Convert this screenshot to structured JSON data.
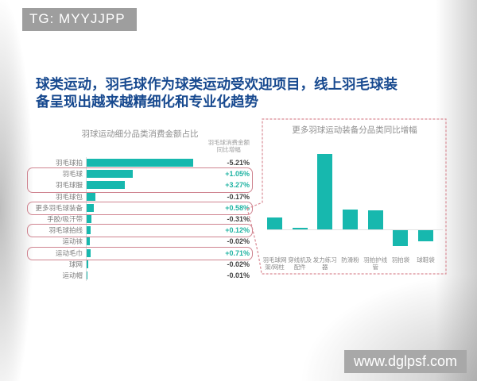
{
  "banner": {
    "text": "TG: MYYJJPP"
  },
  "watermark": {
    "text": "www.dglpsf.com"
  },
  "title": {
    "line1": "球类运动，羽毛球作为球类运动受欢迎项目，线上羽毛球装",
    "line2": "备呈现出越来越精细化和专业化趋势"
  },
  "colors": {
    "bar_teal": "#17b8ae",
    "positive_value": "#1fb3a2",
    "negative_value": "#3f3f3f",
    "highlight_border": "#cf8490",
    "title_blue": "#17498f",
    "gray_text": "#8f8f8f",
    "banner_gray": "#9e9e9e"
  },
  "chart_data": [
    {
      "type": "bar",
      "orientation": "horizontal",
      "title": "羽球运动细分品类消费金额占比",
      "value_column_header_line1": "羽毛球消费金额",
      "value_column_header_line2": "同比增幅",
      "categories": [
        "羽毛球拍",
        "羽毛球",
        "羽毛球服",
        "羽毛球包",
        "更多羽毛球装备",
        "手胶/吸汗带",
        "羽毛球拍线",
        "运动袜",
        "运动毛巾",
        "球网",
        "运动帽"
      ],
      "share_rel_of_max": [
        100,
        43,
        36,
        8,
        6.5,
        4.5,
        3.7,
        3,
        3.5,
        1.3,
        0.6
      ],
      "yoy_values": [
        "-5.21%",
        "+1.05%",
        "+3.27%",
        "-0.17%",
        "+0.58%",
        "-0.31%",
        "+0.12%",
        "-0.02%",
        "+0.71%",
        "-0.02%",
        "-0.01%"
      ],
      "highlight_groups": [
        [
          1,
          2
        ],
        [
          4
        ],
        [
          6
        ],
        [
          8
        ]
      ],
      "grid": false,
      "value_axis_labels_shown": false
    },
    {
      "type": "bar",
      "orientation": "vertical",
      "title": "更多羽球运动装备分品类同比增幅",
      "categories": [
        "羽毛球网架/网柱",
        "穿线机及配件",
        "发力练习器",
        "防滑粉",
        "羽拍护线管",
        "羽拍袋",
        "球鞋袋"
      ],
      "categories_display": [
        [
          "羽毛球网",
          "架/网柱"
        ],
        [
          "穿线机及",
          "配件"
        ],
        [
          "发力练习",
          "器"
        ],
        [
          "防滑粉"
        ],
        [
          "羽拍护线",
          "管"
        ],
        [
          "羽拍袋"
        ],
        [
          "球鞋袋"
        ]
      ],
      "values_rel_of_max": [
        16,
        2,
        100,
        26,
        25,
        -21,
        -15
      ],
      "grid": false,
      "value_axis_labels_shown": false,
      "callout_from": "更多羽毛球装备"
    }
  ]
}
